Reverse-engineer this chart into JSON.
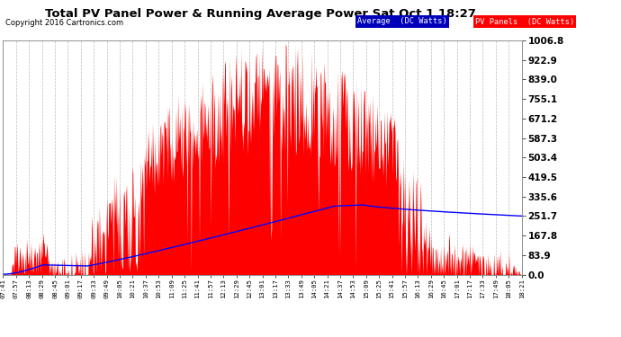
{
  "title": "Total PV Panel Power & Running Average Power Sat Oct 1 18:27",
  "copyright": "Copyright 2016 Cartronics.com",
  "ylabel_right_ticks": [
    0.0,
    83.9,
    167.8,
    251.7,
    335.6,
    419.5,
    503.4,
    587.3,
    671.2,
    755.1,
    839.0,
    922.9,
    1006.8
  ],
  "ymax": 1006.8,
  "ymin": 0.0,
  "plot_bg_color": "#ffffff",
  "grid_color": "#aaaaaa",
  "bar_color": "#ff0000",
  "avg_line_color": "#0000ff",
  "fig_bg_color": "#ffffff",
  "legend_avg_bg": "#0000bb",
  "legend_pv_bg": "#ff0000",
  "x_tick_labels": [
    "07:41",
    "07:57",
    "08:13",
    "08:29",
    "08:45",
    "09:01",
    "09:17",
    "09:33",
    "09:49",
    "10:05",
    "10:21",
    "10:37",
    "10:53",
    "11:09",
    "11:25",
    "11:41",
    "11:57",
    "12:13",
    "12:29",
    "12:45",
    "13:01",
    "13:17",
    "13:33",
    "13:49",
    "14:05",
    "14:21",
    "14:37",
    "14:53",
    "15:09",
    "15:25",
    "15:41",
    "15:57",
    "16:13",
    "16:29",
    "16:45",
    "17:01",
    "17:17",
    "17:33",
    "17:49",
    "18:05",
    "18:21"
  ],
  "n_points": 820
}
